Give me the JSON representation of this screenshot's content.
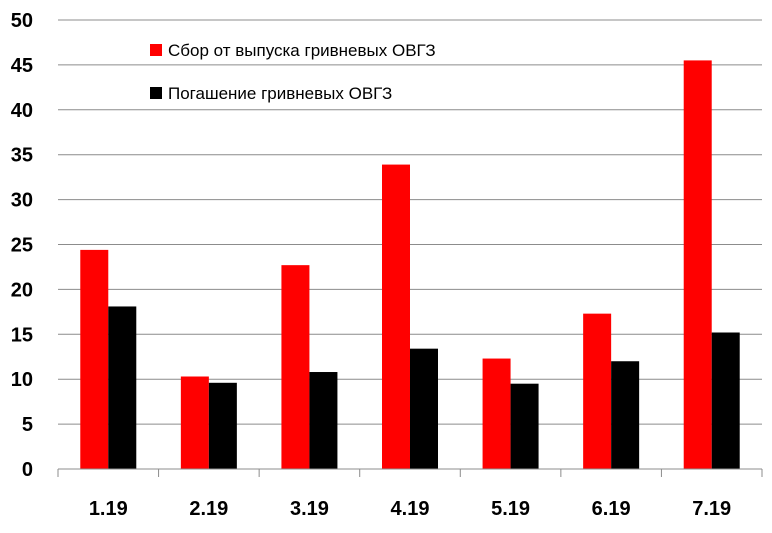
{
  "chart_data": {
    "type": "bar",
    "title": "",
    "xlabel": "",
    "ylabel": "",
    "categories": [
      "1.19",
      "2.19",
      "3.19",
      "4.19",
      "5.19",
      "6.19",
      "7.19"
    ],
    "series": [
      {
        "name": "Сбор от выпуска гривневых ОВГЗ",
        "color": "#ff0000",
        "values": [
          24.4,
          10.3,
          22.7,
          33.9,
          12.3,
          17.3,
          45.5
        ]
      },
      {
        "name": "Погашение гривневых ОВГЗ",
        "color": "#000000",
        "values": [
          18.1,
          9.6,
          10.8,
          13.4,
          9.5,
          12.0,
          15.2
        ]
      }
    ],
    "ylim": [
      0,
      50
    ],
    "yticks": [
      "0",
      "5",
      "10",
      "15",
      "20",
      "25",
      "30",
      "35",
      "40",
      "45",
      "50"
    ],
    "grid": true,
    "legend_position": "top-left"
  }
}
